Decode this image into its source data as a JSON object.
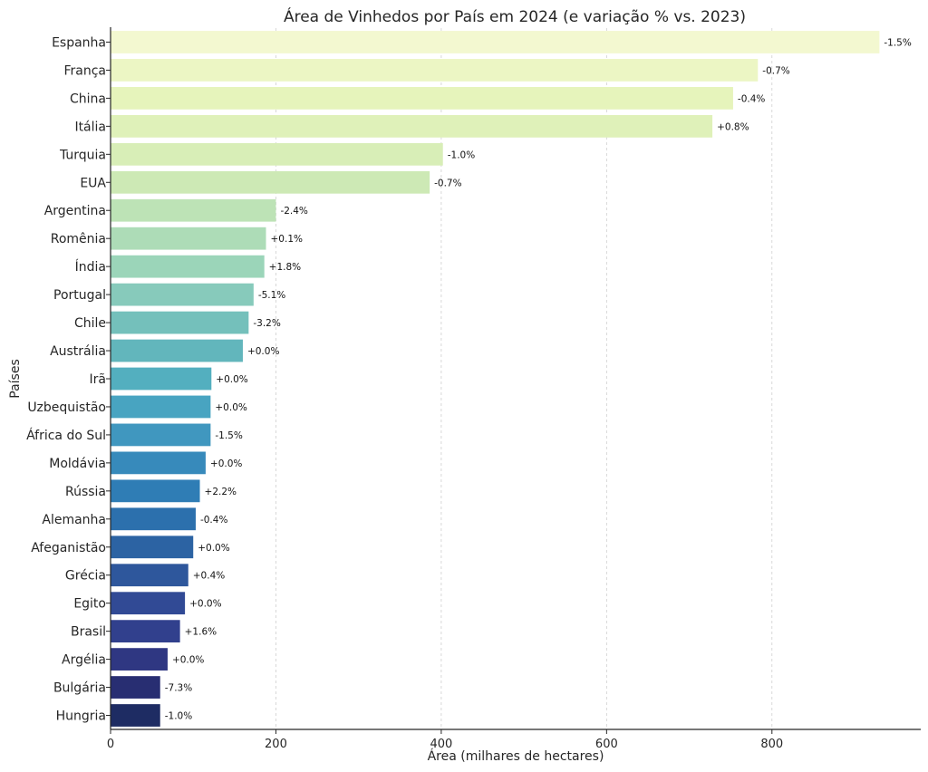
{
  "chart_data": {
    "type": "bar",
    "orientation": "horizontal",
    "title": "Área de Vinhedos por País em 2024 (e variação % vs. 2023)",
    "xlabel": "Área (milhares de hectares)",
    "ylabel": "Países",
    "xlim": [
      0,
      980
    ],
    "xticks": [
      0,
      200,
      400,
      600,
      800
    ],
    "grid": "x",
    "categories": [
      "Espanha",
      "França",
      "China",
      "Itália",
      "Turquia",
      "EUA",
      "Argentina",
      "Romênia",
      "Índia",
      "Portugal",
      "Chile",
      "Austrália",
      "Irã",
      "Uzbequistão",
      "África do Sul",
      "Moldávia",
      "Rússia",
      "Alemanha",
      "Afeganistão",
      "Grécia",
      "Egito",
      "Brasil",
      "Argélia",
      "Bulgária",
      "Hungria"
    ],
    "values": [
      930,
      783,
      753,
      728,
      402,
      386,
      200,
      188,
      186,
      173,
      167,
      160,
      122,
      121,
      121,
      115,
      108,
      103,
      100,
      94,
      90,
      84,
      69,
      60,
      60
    ],
    "labels": [
      "-1.5%",
      "-0.7%",
      "-0.4%",
      "+0.8%",
      "-1.0%",
      "-0.7%",
      "-2.4%",
      "+0.1%",
      "+1.8%",
      "-5.1%",
      "-3.2%",
      "+0.0%",
      "+0.0%",
      "+0.0%",
      "-1.5%",
      "+0.0%",
      "+2.2%",
      "-0.4%",
      "+0.0%",
      "+0.4%",
      "+0.0%",
      "+1.6%",
      "+0.0%",
      "-7.3%",
      "-1.0%"
    ],
    "colors": [
      "#f3f8d0",
      "#ecf6c4",
      "#e6f4bb",
      "#dff1b9",
      "#d8eeb7",
      "#cde9b5",
      "#bde3b6",
      "#addcb7",
      "#9bd5b9",
      "#87cabb",
      "#74c0bb",
      "#62b6bc",
      "#53afbf",
      "#48a4c1",
      "#4097bf",
      "#378abb",
      "#2f7db5",
      "#2c70ad",
      "#2c63a3",
      "#2e579c",
      "#314a95",
      "#31408d",
      "#2f3782",
      "#282e72",
      "#1e2c63"
    ]
  }
}
